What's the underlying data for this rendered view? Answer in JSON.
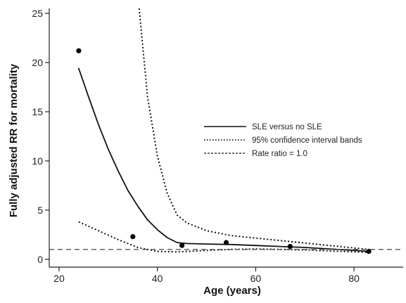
{
  "chart_data": {
    "type": "line",
    "xlabel": "Age (years)",
    "ylabel": "Fully adjusted RR for mortality",
    "xlim": [
      18,
      90
    ],
    "ylim": [
      -0.8,
      25.5
    ],
    "x_ticks": [
      20,
      40,
      60,
      80
    ],
    "y_ticks": [
      0,
      5,
      10,
      15,
      20,
      25
    ],
    "grid": false,
    "legend_position": "right",
    "series": [
      {
        "name": "SLE versus no SLE",
        "style": "solid",
        "x": [
          24,
          26,
          28,
          30,
          32,
          34,
          36,
          38,
          40,
          42,
          44,
          46,
          50,
          55,
          60,
          65,
          70,
          75,
          80,
          83
        ],
        "y": [
          19.4,
          16.5,
          13.7,
          11.2,
          9.0,
          7.0,
          5.4,
          4.0,
          3.0,
          2.2,
          1.7,
          1.6,
          1.55,
          1.5,
          1.4,
          1.3,
          1.2,
          1.05,
          0.9,
          0.8
        ]
      },
      {
        "name": "95% confidence interval bands",
        "style": "dotted",
        "x": [
          36.3,
          38,
          40,
          42,
          44,
          46,
          50,
          55,
          60,
          65,
          70,
          75,
          80,
          83
        ],
        "y": [
          25.5,
          16.5,
          10.5,
          6.7,
          4.5,
          3.7,
          2.9,
          2.4,
          2.15,
          1.9,
          1.65,
          1.4,
          1.15,
          1.0
        ]
      },
      {
        "name": "95% confidence interval bands (lower)",
        "style": "dotted",
        "x": [
          24,
          28,
          32,
          36,
          40,
          44,
          50,
          55,
          60,
          65,
          70,
          75,
          80,
          83
        ],
        "y": [
          3.8,
          2.9,
          2.0,
          1.2,
          0.8,
          0.75,
          0.9,
          1.0,
          1.05,
          1.0,
          0.95,
          0.85,
          0.75,
          0.7
        ]
      },
      {
        "name": "Rate ratio = 1.0",
        "style": "dashed",
        "x": [
          18,
          90
        ],
        "y": [
          1.0,
          1.0
        ]
      }
    ],
    "points": {
      "x": [
        24,
        35,
        45,
        54,
        67,
        83
      ],
      "y": [
        21.2,
        2.3,
        1.4,
        1.7,
        1.3,
        0.8
      ]
    },
    "legend": [
      {
        "label": "SLE versus no SLE",
        "style": "solid"
      },
      {
        "label": "95% confidence interval bands",
        "style": "dotted"
      },
      {
        "label": "Rate ratio = 1.0",
        "style": "dashed"
      }
    ]
  }
}
